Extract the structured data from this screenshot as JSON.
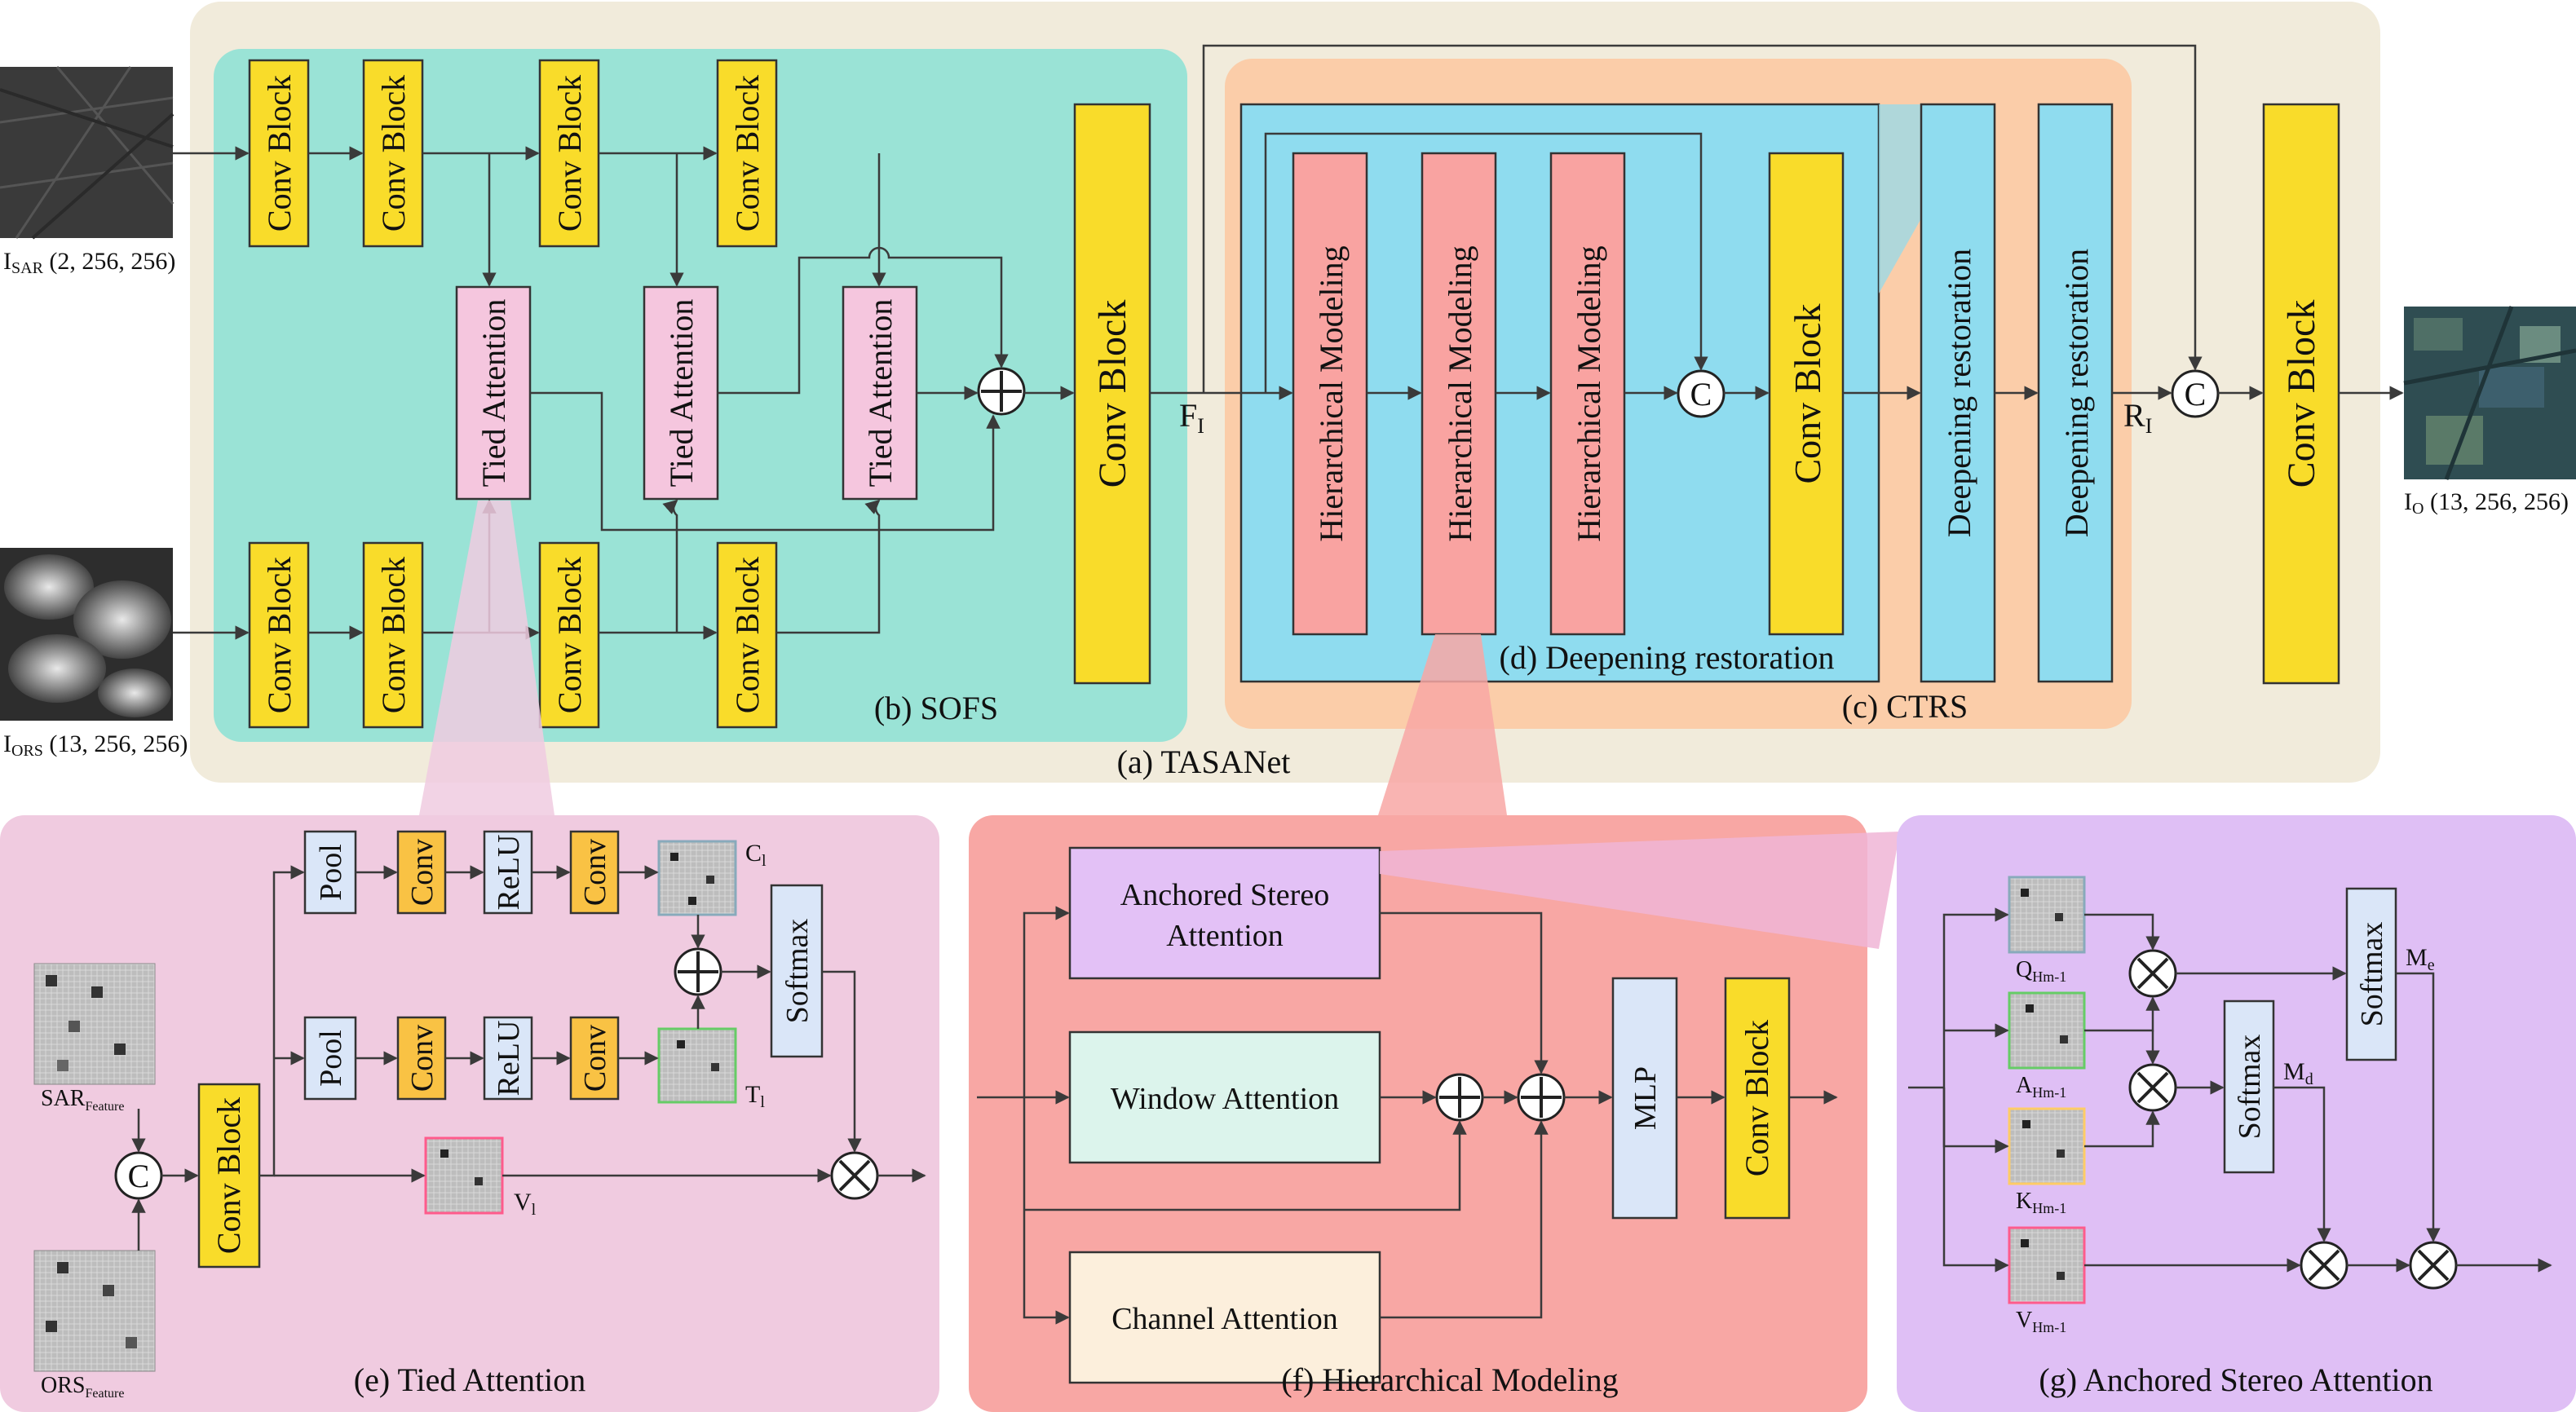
{
  "labels": {
    "conv_block": "Conv Block",
    "tied_attention": "Tied Attention",
    "hierarchical_modeling": "Hierarchical Modeling",
    "deepening_restoration": "Deepening restoration",
    "pool": "Pool",
    "conv": "Conv",
    "relu": "ReLU",
    "softmax": "Softmax",
    "mlp": "MLP",
    "anchored_stereo_attention_l1": "Anchored Stereo",
    "anchored_stereo_attention_l2": "Attention",
    "window_attention": "Window Attention",
    "channel_attention": "Channel Attention",
    "concat_symbol": "C"
  },
  "captions": {
    "tasanet": "(a) TASANet",
    "sofs": "(b) SOFS",
    "ctrs": "(c) CTRS",
    "deepening": "(d) Deepening restoration",
    "tied": "(e) Tied Attention",
    "hier": "(f) Hierarchical Modeling",
    "anchored": "(g) Anchored Stereo Attention"
  },
  "io": {
    "sar_base": "I",
    "sar_sub": "SAR",
    "sar_dims": " (2, 256, 256)",
    "ors_base": "I",
    "ors_sub": "ORS",
    "ors_dims": " (13, 256, 256)",
    "out_base": "I",
    "out_sub": "O",
    "out_dims": " (13, 256, 256)"
  },
  "symbols": {
    "fi_base": "F",
    "fi_sub": "I",
    "ri_base": "R",
    "ri_sub": "I",
    "cl_base": "C",
    "cl_sub": "l",
    "tl_base": "T",
    "tl_sub": "l",
    "vl_base": "V",
    "vl_sub": "l",
    "sarf_base": "SAR",
    "sarf_sub": "Feature",
    "orsf_base": "ORS",
    "orsf_sub": "Feature",
    "q_base": "Q",
    "q_sub": "Hm-1",
    "a_base": "A",
    "a_sub": "Hm-1",
    "k_base": "K",
    "k_sub": "Hm-1",
    "v_base": "V",
    "v_sub": "Hm-1",
    "me_base": "M",
    "me_sub": "e",
    "md_base": "M",
    "md_sub": "d"
  },
  "colors": {
    "tasanet_bg": "#f1ebdb",
    "sofs_bg": "#9ae3d6",
    "ctrs_bg": "#fbcda9",
    "deep_bg": "#8fdcef",
    "conv_yellow": "#f9dc2a",
    "tied_pink": "#f5c6de",
    "hier_red": "#f9a3a1",
    "panel_e_bg": "#f0cbe0",
    "panel_f_bg": "#f8a7a4",
    "panel_g_bg": "#dfbff5",
    "conv_orange": "#f9c244",
    "light_blue": "#dae6f8",
    "asa_purple": "#e3c1f6",
    "window_mint": "#dcf4ec",
    "channel_cream": "#fcefdc",
    "accent_pink": "#ff5b8c"
  }
}
